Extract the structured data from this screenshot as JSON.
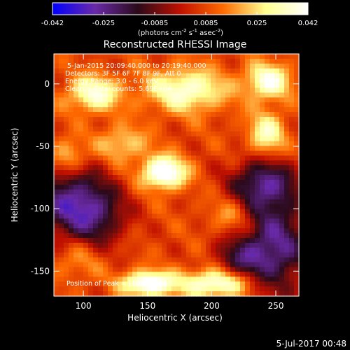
{
  "colorbar": {
    "ticks": [
      "-0.042",
      "-0.025",
      "-0.0085",
      "0.0085",
      "0.025",
      "0.042"
    ],
    "unit_parts": [
      "(photons cm",
      "-2",
      " s",
      "-1",
      " asec",
      "-2",
      ")"
    ],
    "stops": [
      "#0000ff",
      "#6a2aa8",
      "#2a0a1a",
      "#c01000",
      "#ff6a00",
      "#ffff90",
      "#ffffff"
    ]
  },
  "title": "Reconstructed RHESSI Image",
  "info": {
    "time_range": "5-Jan-2015 20:09:40.000 to 20:19:40.000",
    "detectors": "Detectors: 3F 5F 6F 7F 8F 9F, Att 0",
    "energy": "Energy Range: 3.0 - 6.0 keV",
    "method_counts": "Clean     Total counts: 5.69E+04",
    "peak": "Position of Peak = [163, -71]"
  },
  "footer_date": "5-Jul-2017 00:48",
  "chart_data": {
    "type": "heatmap",
    "title": "Reconstructed RHESSI Image",
    "xlabel": "Heliocentric X (arcsec)",
    "ylabel": "Heliocentric Y (arcsec)",
    "xlim": [
      77,
      268
    ],
    "ylim": [
      -170,
      24
    ],
    "xticks": [
      100,
      150,
      200,
      250
    ],
    "yticks": [
      0,
      -50,
      -100,
      -150
    ],
    "zlim": [
      -0.042,
      0.042
    ],
    "peak": [
      163,
      -71
    ],
    "features": [
      {
        "x": 163,
        "y": -71,
        "z": 0.042,
        "sx": 12,
        "sy": 9
      },
      {
        "x": 150,
        "y": -160,
        "z": 0.04,
        "sx": 14,
        "sy": 7
      },
      {
        "x": 203,
        "y": -160,
        "z": 0.034,
        "sx": 20,
        "sy": 8
      },
      {
        "x": 108,
        "y": -8,
        "z": 0.03,
        "sx": 14,
        "sy": 10
      },
      {
        "x": 180,
        "y": -5,
        "z": 0.03,
        "sx": 22,
        "sy": 12
      },
      {
        "x": 244,
        "y": 2,
        "z": 0.032,
        "sx": 12,
        "sy": 10
      },
      {
        "x": 243,
        "y": -40,
        "z": 0.026,
        "sx": 10,
        "sy": 12
      },
      {
        "x": 88,
        "y": -58,
        "z": 0.02,
        "sx": 10,
        "sy": 10
      },
      {
        "x": 130,
        "y": -48,
        "z": 0.018,
        "sx": 14,
        "sy": 10
      },
      {
        "x": 215,
        "y": -105,
        "z": 0.012,
        "sx": 12,
        "sy": 10
      },
      {
        "x": 95,
        "y": -140,
        "z": 0.012,
        "sx": 14,
        "sy": 12
      },
      {
        "x": 88,
        "y": -95,
        "z": -0.03,
        "sx": 20,
        "sy": 22
      },
      {
        "x": 112,
        "y": -105,
        "z": -0.02,
        "sx": 16,
        "sy": 18
      },
      {
        "x": 240,
        "y": -80,
        "z": -0.03,
        "sx": 18,
        "sy": 14
      },
      {
        "x": 250,
        "y": -130,
        "z": -0.032,
        "sx": 18,
        "sy": 28
      },
      {
        "x": 222,
        "y": -140,
        "z": -0.02,
        "sx": 14,
        "sy": 12
      }
    ],
    "baseline": 0.008
  }
}
